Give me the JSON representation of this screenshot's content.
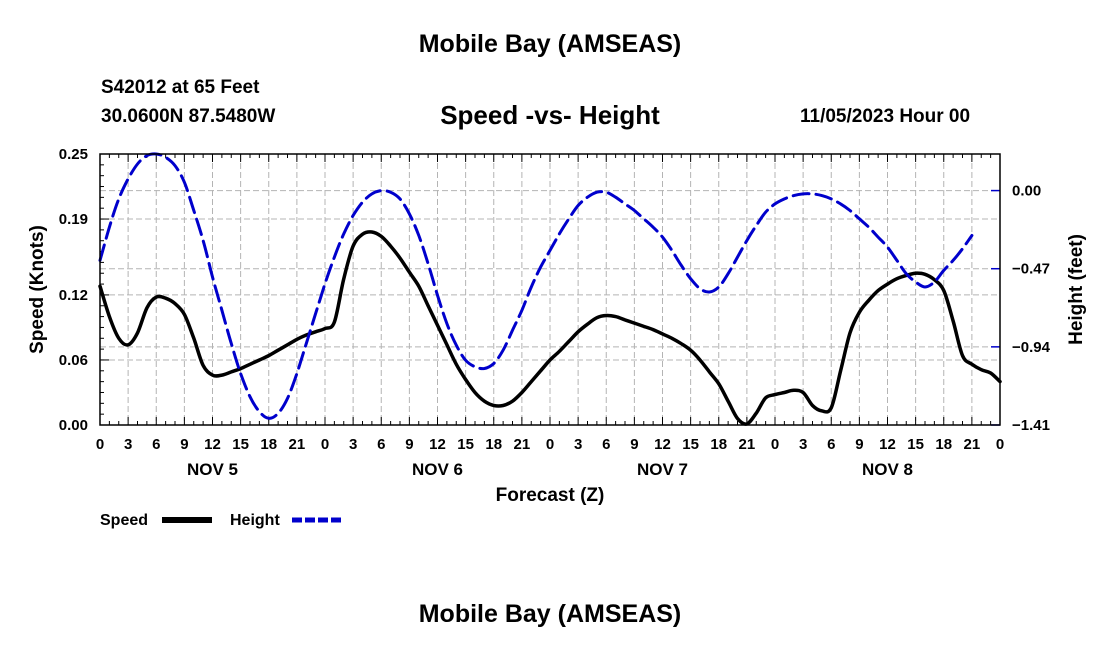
{
  "header": {
    "title": "Mobile Bay (AMSEAS)",
    "station": "S42012 at 65 Feet",
    "coords": "30.0600N  87.5480W",
    "subtitle": "Speed -vs- Height",
    "datetime": "11/05/2023 Hour 00",
    "bottom_title": "Mobile Bay (AMSEAS)"
  },
  "colors": {
    "speed": "#000000",
    "height": "#0000cc",
    "grid": "#b4b4b4"
  },
  "chart_data": {
    "type": "line",
    "xlabel": "Forecast (Z)",
    "ylabel": "Speed (Knots)",
    "ylabel_right": "Height (feet)",
    "xlim": [
      0,
      96
    ],
    "ylim": [
      0,
      0.25
    ],
    "ylim_right": [
      -1.41,
      0.22
    ],
    "y_ticks": [
      0.0,
      0.06,
      0.12,
      0.19,
      0.25
    ],
    "y_tick_labels": [
      "0.00",
      "0.06",
      "0.12",
      "0.19",
      "0.25"
    ],
    "y_right_ticks": [
      0.0,
      -0.47,
      -0.94,
      -1.41
    ],
    "y_right_tick_labels": [
      "0.00",
      "−0.47",
      "−0.94",
      "−1.41"
    ],
    "x_tick_hours": [
      0,
      3,
      6,
      9,
      12,
      15,
      18,
      21,
      24,
      27,
      30,
      33,
      36,
      39,
      42,
      45,
      48,
      51,
      54,
      57,
      60,
      63,
      66,
      69,
      72,
      75,
      78,
      81,
      84,
      87,
      90,
      93,
      96
    ],
    "x_tick_labels": [
      "0",
      "3",
      "6",
      "9",
      "12",
      "15",
      "18",
      "21",
      "0",
      "3",
      "6",
      "9",
      "12",
      "15",
      "18",
      "21",
      "0",
      "3",
      "6",
      "9",
      "12",
      "15",
      "18",
      "21",
      "0",
      "3",
      "6",
      "9",
      "12",
      "15",
      "18",
      "21",
      "0"
    ],
    "day_labels": [
      {
        "hour": 12,
        "label": "NOV 5"
      },
      {
        "hour": 36,
        "label": "NOV 6"
      },
      {
        "hour": 60,
        "label": "NOV 7"
      },
      {
        "hour": 84,
        "label": "NOV 8"
      }
    ],
    "legend": [
      {
        "label": "Speed",
        "series": "speed"
      },
      {
        "label": "Height",
        "series": "height"
      }
    ],
    "series": [
      {
        "name": "Speed",
        "axis": "left",
        "style": "solid",
        "points": [
          [
            0,
            0.128
          ],
          [
            1,
            0.1
          ],
          [
            2,
            0.08
          ],
          [
            3,
            0.074
          ],
          [
            4,
            0.085
          ],
          [
            5,
            0.108
          ],
          [
            6,
            0.118
          ],
          [
            7,
            0.117
          ],
          [
            8,
            0.112
          ],
          [
            9,
            0.102
          ],
          [
            10,
            0.08
          ],
          [
            11,
            0.055
          ],
          [
            12,
            0.046
          ],
          [
            13,
            0.046
          ],
          [
            14,
            0.049
          ],
          [
            15,
            0.052
          ],
          [
            16,
            0.056
          ],
          [
            17,
            0.06
          ],
          [
            18,
            0.064
          ],
          [
            19,
            0.069
          ],
          [
            20,
            0.074
          ],
          [
            21,
            0.079
          ],
          [
            22,
            0.083
          ],
          [
            23,
            0.086
          ],
          [
            24,
            0.089
          ],
          [
            25,
            0.095
          ],
          [
            26,
            0.135
          ],
          [
            27,
            0.165
          ],
          [
            28,
            0.176
          ],
          [
            29,
            0.178
          ],
          [
            30,
            0.174
          ],
          [
            31,
            0.165
          ],
          [
            32,
            0.154
          ],
          [
            33,
            0.141
          ],
          [
            34,
            0.128
          ],
          [
            35,
            0.11
          ],
          [
            36,
            0.092
          ],
          [
            37,
            0.074
          ],
          [
            38,
            0.056
          ],
          [
            39,
            0.042
          ],
          [
            40,
            0.03
          ],
          [
            41,
            0.022
          ],
          [
            42,
            0.018
          ],
          [
            43,
            0.018
          ],
          [
            44,
            0.022
          ],
          [
            45,
            0.03
          ],
          [
            46,
            0.04
          ],
          [
            47,
            0.05
          ],
          [
            48,
            0.06
          ],
          [
            49,
            0.068
          ],
          [
            50,
            0.077
          ],
          [
            51,
            0.086
          ],
          [
            52,
            0.093
          ],
          [
            53,
            0.099
          ],
          [
            54,
            0.101
          ],
          [
            55,
            0.1
          ],
          [
            56,
            0.097
          ],
          [
            57,
            0.094
          ],
          [
            58,
            0.091
          ],
          [
            59,
            0.088
          ],
          [
            60,
            0.084
          ],
          [
            61,
            0.08
          ],
          [
            62,
            0.075
          ],
          [
            63,
            0.069
          ],
          [
            64,
            0.06
          ],
          [
            65,
            0.049
          ],
          [
            66,
            0.038
          ],
          [
            67,
            0.022
          ],
          [
            68,
            0.006
          ],
          [
            69,
            0.001
          ],
          [
            70,
            0.011
          ],
          [
            71,
            0.025
          ],
          [
            72,
            0.028
          ],
          [
            73,
            0.03
          ],
          [
            74,
            0.032
          ],
          [
            75,
            0.03
          ],
          [
            76,
            0.018
          ],
          [
            77,
            0.013
          ],
          [
            78,
            0.016
          ],
          [
            79,
            0.05
          ],
          [
            80,
            0.085
          ],
          [
            81,
            0.104
          ],
          [
            82,
            0.115
          ],
          [
            83,
            0.124
          ],
          [
            84,
            0.13
          ],
          [
            85,
            0.135
          ],
          [
            86,
            0.138
          ],
          [
            87,
            0.14
          ],
          [
            88,
            0.139
          ],
          [
            89,
            0.134
          ],
          [
            90,
            0.124
          ],
          [
            91,
            0.096
          ],
          [
            92,
            0.064
          ],
          [
            93,
            0.056
          ],
          [
            94,
            0.051
          ],
          [
            95,
            0.048
          ],
          [
            96,
            0.04
          ]
        ]
      },
      {
        "name": "Height",
        "axis": "right",
        "style": "dashed",
        "points": [
          [
            0,
            -0.42
          ],
          [
            1,
            -0.22
          ],
          [
            2,
            -0.05
          ],
          [
            3,
            0.07
          ],
          [
            4,
            0.16
          ],
          [
            5,
            0.21
          ],
          [
            6,
            0.22
          ],
          [
            7,
            0.2
          ],
          [
            8,
            0.15
          ],
          [
            9,
            0.05
          ],
          [
            10,
            -0.12
          ],
          [
            11,
            -0.3
          ],
          [
            12,
            -0.52
          ],
          [
            13,
            -0.72
          ],
          [
            14,
            -0.92
          ],
          [
            15,
            -1.1
          ],
          [
            16,
            -1.24
          ],
          [
            17,
            -1.33
          ],
          [
            18,
            -1.37
          ],
          [
            19,
            -1.34
          ],
          [
            20,
            -1.25
          ],
          [
            21,
            -1.1
          ],
          [
            22,
            -0.92
          ],
          [
            23,
            -0.74
          ],
          [
            24,
            -0.56
          ],
          [
            25,
            -0.4
          ],
          [
            26,
            -0.26
          ],
          [
            27,
            -0.15
          ],
          [
            28,
            -0.07
          ],
          [
            29,
            -0.02
          ],
          [
            30,
            0.0
          ],
          [
            31,
            -0.01
          ],
          [
            32,
            -0.05
          ],
          [
            33,
            -0.14
          ],
          [
            34,
            -0.27
          ],
          [
            35,
            -0.44
          ],
          [
            36,
            -0.63
          ],
          [
            37,
            -0.8
          ],
          [
            38,
            -0.93
          ],
          [
            39,
            -1.02
          ],
          [
            40,
            -1.06
          ],
          [
            41,
            -1.07
          ],
          [
            42,
            -1.04
          ],
          [
            43,
            -0.96
          ],
          [
            44,
            -0.84
          ],
          [
            45,
            -0.72
          ],
          [
            46,
            -0.58
          ],
          [
            47,
            -0.46
          ],
          [
            48,
            -0.36
          ],
          [
            49,
            -0.26
          ],
          [
            50,
            -0.17
          ],
          [
            51,
            -0.09
          ],
          [
            52,
            -0.04
          ],
          [
            53,
            -0.01
          ],
          [
            54,
            -0.01
          ],
          [
            55,
            -0.04
          ],
          [
            56,
            -0.08
          ],
          [
            57,
            -0.12
          ],
          [
            58,
            -0.17
          ],
          [
            59,
            -0.22
          ],
          [
            60,
            -0.28
          ],
          [
            61,
            -0.36
          ],
          [
            62,
            -0.45
          ],
          [
            63,
            -0.53
          ],
          [
            64,
            -0.59
          ],
          [
            65,
            -0.61
          ],
          [
            66,
            -0.58
          ],
          [
            67,
            -0.5
          ],
          [
            68,
            -0.4
          ],
          [
            69,
            -0.3
          ],
          [
            70,
            -0.21
          ],
          [
            71,
            -0.13
          ],
          [
            72,
            -0.08
          ],
          [
            73,
            -0.05
          ],
          [
            74,
            -0.03
          ],
          [
            75,
            -0.02
          ],
          [
            76,
            -0.02
          ],
          [
            77,
            -0.03
          ],
          [
            78,
            -0.05
          ],
          [
            79,
            -0.08
          ],
          [
            80,
            -0.12
          ],
          [
            81,
            -0.17
          ],
          [
            82,
            -0.22
          ],
          [
            83,
            -0.28
          ],
          [
            84,
            -0.34
          ],
          [
            85,
            -0.42
          ],
          [
            86,
            -0.5
          ],
          [
            87,
            -0.55
          ],
          [
            88,
            -0.58
          ],
          [
            89,
            -0.55
          ],
          [
            90,
            -0.48
          ],
          [
            91,
            -0.42
          ],
          [
            92,
            -0.35
          ],
          [
            93,
            -0.27
          ]
        ]
      }
    ]
  }
}
